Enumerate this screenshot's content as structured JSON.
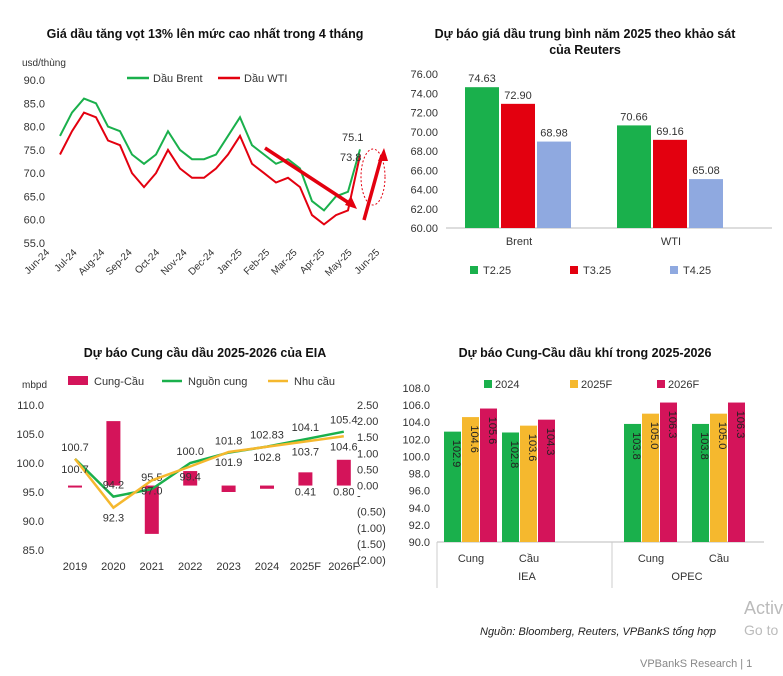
{
  "chart_data": [
    {
      "type": "line",
      "title": "Giá dầu tăng vọt 13% lên mức cao nhất trong 4 tháng",
      "ylabel": "usd/thùng",
      "ylim": [
        55,
        90
      ],
      "yticks": [
        "90.0",
        "85.0",
        "80.0",
        "75.0",
        "70.0",
        "65.0",
        "60.0",
        "55.0"
      ],
      "xticks": [
        "Jun-24",
        "Jul-24",
        "Aug-24",
        "Sep-24",
        "Oct-24",
        "Nov-24",
        "Dec-24",
        "Jan-25",
        "Feb-25",
        "Mar-25",
        "Apr-25",
        "May-25",
        "Jun-25"
      ],
      "x": [
        "Jun-24",
        "Jun-24b",
        "Jul-24",
        "Jul-24b",
        "Aug-24",
        "Aug-24b",
        "Sep-24",
        "Sep-24b",
        "Oct-24",
        "Oct-24b",
        "Nov-24",
        "Nov-24b",
        "Dec-24",
        "Dec-24b",
        "Jan-25",
        "Jan-25b",
        "Feb-25",
        "Feb-25b",
        "Mar-25",
        "Mar-25b",
        "Apr-25",
        "Apr-25b",
        "May-25",
        "May-25b",
        "Jun-25",
        "Jun-25b"
      ],
      "series": [
        {
          "name": "Dầu Brent",
          "color": "#1ab04c",
          "values": [
            78,
            83,
            86,
            85,
            80,
            79,
            74,
            72,
            74,
            79,
            75,
            73,
            73,
            74,
            78,
            82,
            76,
            74,
            72,
            73,
            71,
            64,
            62,
            65,
            66,
            75.1
          ]
        },
        {
          "name": "Dầu WTI",
          "color": "#e3000f",
          "values": [
            74,
            79,
            83,
            82,
            77,
            76,
            70,
            67,
            70,
            75,
            71,
            69,
            69,
            71,
            74,
            78,
            72,
            70,
            68,
            69,
            67,
            61,
            59,
            61,
            62,
            73.8
          ]
        }
      ],
      "annotations": [
        "75.1",
        "73.8"
      ]
    },
    {
      "type": "bar",
      "title": "Dự báo giá dầu trung bình năm 2025 theo khảo sát của Reuters",
      "categories": [
        "Brent",
        "WTI"
      ],
      "ylim": [
        60,
        76
      ],
      "yticks": [
        "76.00",
        "74.00",
        "72.00",
        "70.00",
        "68.00",
        "66.00",
        "64.00",
        "62.00",
        "60.00"
      ],
      "series": [
        {
          "name": "T2.25",
          "color": "#1ab04c",
          "values": [
            74.63,
            70.66
          ],
          "labels": [
            "74.63",
            "70.66"
          ]
        },
        {
          "name": "T3.25",
          "color": "#e3000f",
          "values": [
            72.9,
            69.16
          ],
          "labels": [
            "72.90",
            "69.16"
          ]
        },
        {
          "name": "T4.25",
          "color": "#8fa9e0",
          "values": [
            68.98,
            65.08
          ],
          "labels": [
            "68.98",
            "65.08"
          ]
        }
      ]
    },
    {
      "type": "bar",
      "title": "Dự báo Cung cầu dầu 2025-2026 của EIA",
      "ylabel": "mbpd",
      "categories": [
        "2019",
        "2020",
        "2021",
        "2022",
        "2023",
        "2024",
        "2025F",
        "2026F"
      ],
      "ylim": [
        85,
        110
      ],
      "ylim2": [
        -2,
        2.5
      ],
      "yticks": [
        "110.0",
        "105.0",
        "100.0",
        "95.0",
        "90.0",
        "85.0"
      ],
      "yticks2": [
        "2.50",
        "2.00",
        "1.50",
        "1.00",
        "0.50",
        "0.00",
        "-",
        "(0.50)",
        "(1.00)",
        "(1.50)",
        "(2.00)"
      ],
      "series": [
        {
          "name": "Cung-Cầu",
          "color": "#d4145a",
          "values": [
            0.0,
            2.0,
            -1.5,
            0.45,
            -0.2,
            -0.1,
            0.41,
            0.8
          ],
          "labels": [
            "",
            "",
            "",
            "",
            "",
            "",
            "0.41",
            "0.80"
          ]
        },
        {
          "name": "Nguồn cung",
          "color": "#1ab04c",
          "values": [
            100.7,
            94.2,
            95.5,
            100.0,
            101.8,
            102.83,
            104.1,
            105.4
          ],
          "labels": [
            "100.7",
            "94.2",
            "95.5",
            "100.0",
            "101.8",
            "102.83",
            "104.1",
            "105.4"
          ]
        },
        {
          "name": "Nhu cầu",
          "color": "#f5b82e",
          "values": [
            100.7,
            92.3,
            97.0,
            99.4,
            101.9,
            102.8,
            103.7,
            104.6
          ],
          "labels": [
            "100.7",
            "92.3",
            "97.0",
            "99.4",
            "101.9",
            "102.8",
            "103.7",
            "104.6"
          ]
        }
      ]
    },
    {
      "type": "bar",
      "title": "Dự báo Cung-Cầu dầu khí trong 2025-2026",
      "categories": [
        "Cung",
        "Cầu",
        "Cung",
        "Cầu"
      ],
      "groups": [
        "IEA",
        "OPEC"
      ],
      "ylim": [
        90,
        108
      ],
      "yticks": [
        "108.0",
        "106.0",
        "104.0",
        "102.0",
        "100.0",
        "98.0",
        "96.0",
        "94.0",
        "92.0",
        "90.0"
      ],
      "series": [
        {
          "name": "2024",
          "color": "#1ab04c",
          "values": [
            102.9,
            102.8,
            103.8,
            103.8
          ],
          "labels": [
            "102.9",
            "102.8",
            "103.8",
            "103.8"
          ]
        },
        {
          "name": "2025F",
          "color": "#f5b82e",
          "values": [
            104.6,
            103.6,
            105.0,
            105.0
          ],
          "labels": [
            "104.6",
            "103.6",
            "105.0",
            "105.0"
          ]
        },
        {
          "name": "2026F",
          "color": "#d4145a",
          "values": [
            105.6,
            104.3,
            106.3,
            106.3
          ],
          "labels": [
            "105.6",
            "104.3",
            "106.3",
            "106.3"
          ]
        }
      ]
    }
  ],
  "footer": {
    "source": "Nguồn: Bloomberg, Reuters, VPBankS tổng hợp",
    "brand": "VPBankS Research | 1",
    "watermark_line1": "Activ",
    "watermark_line2": "Go to"
  }
}
